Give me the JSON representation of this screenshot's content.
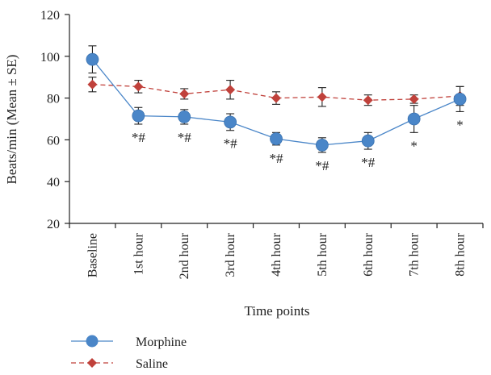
{
  "chart_data": {
    "type": "line",
    "xlabel": "Time points",
    "ylabel": "Beats/min (Mean ± SE)",
    "categories": [
      "Baseline",
      "1st hour",
      "2nd hour",
      "3rd hour",
      "4th hour",
      "5th hour",
      "6th hour",
      "7th hour",
      "8th hour"
    ],
    "ylim": [
      20,
      120
    ],
    "yticks": [
      20,
      40,
      60,
      80,
      100,
      120
    ],
    "grid": false,
    "legend": "bottom-left",
    "series": [
      {
        "name": "Morphine",
        "color": "#4a86c8",
        "marker": "circle",
        "line": "solid",
        "values": [
          98.5,
          71.5,
          71,
          68.5,
          60.5,
          57.5,
          59.5,
          70,
          79.5
        ],
        "errors": [
          6.5,
          4,
          3.5,
          4,
          3,
          3.5,
          4,
          6.5,
          6
        ]
      },
      {
        "name": "Saline",
        "color": "#c0413b",
        "marker": "diamond",
        "line": "dashed",
        "values": [
          86.5,
          85.5,
          82,
          84,
          80,
          80.5,
          79,
          79.5,
          81
        ],
        "errors": [
          3.5,
          3,
          2.5,
          4.5,
          3,
          4.5,
          2.5,
          2,
          4.5
        ]
      }
    ],
    "annotations": [
      "",
      "*#",
      "*#",
      "*#",
      "*#",
      "*#",
      "*#",
      "*",
      "*"
    ]
  }
}
